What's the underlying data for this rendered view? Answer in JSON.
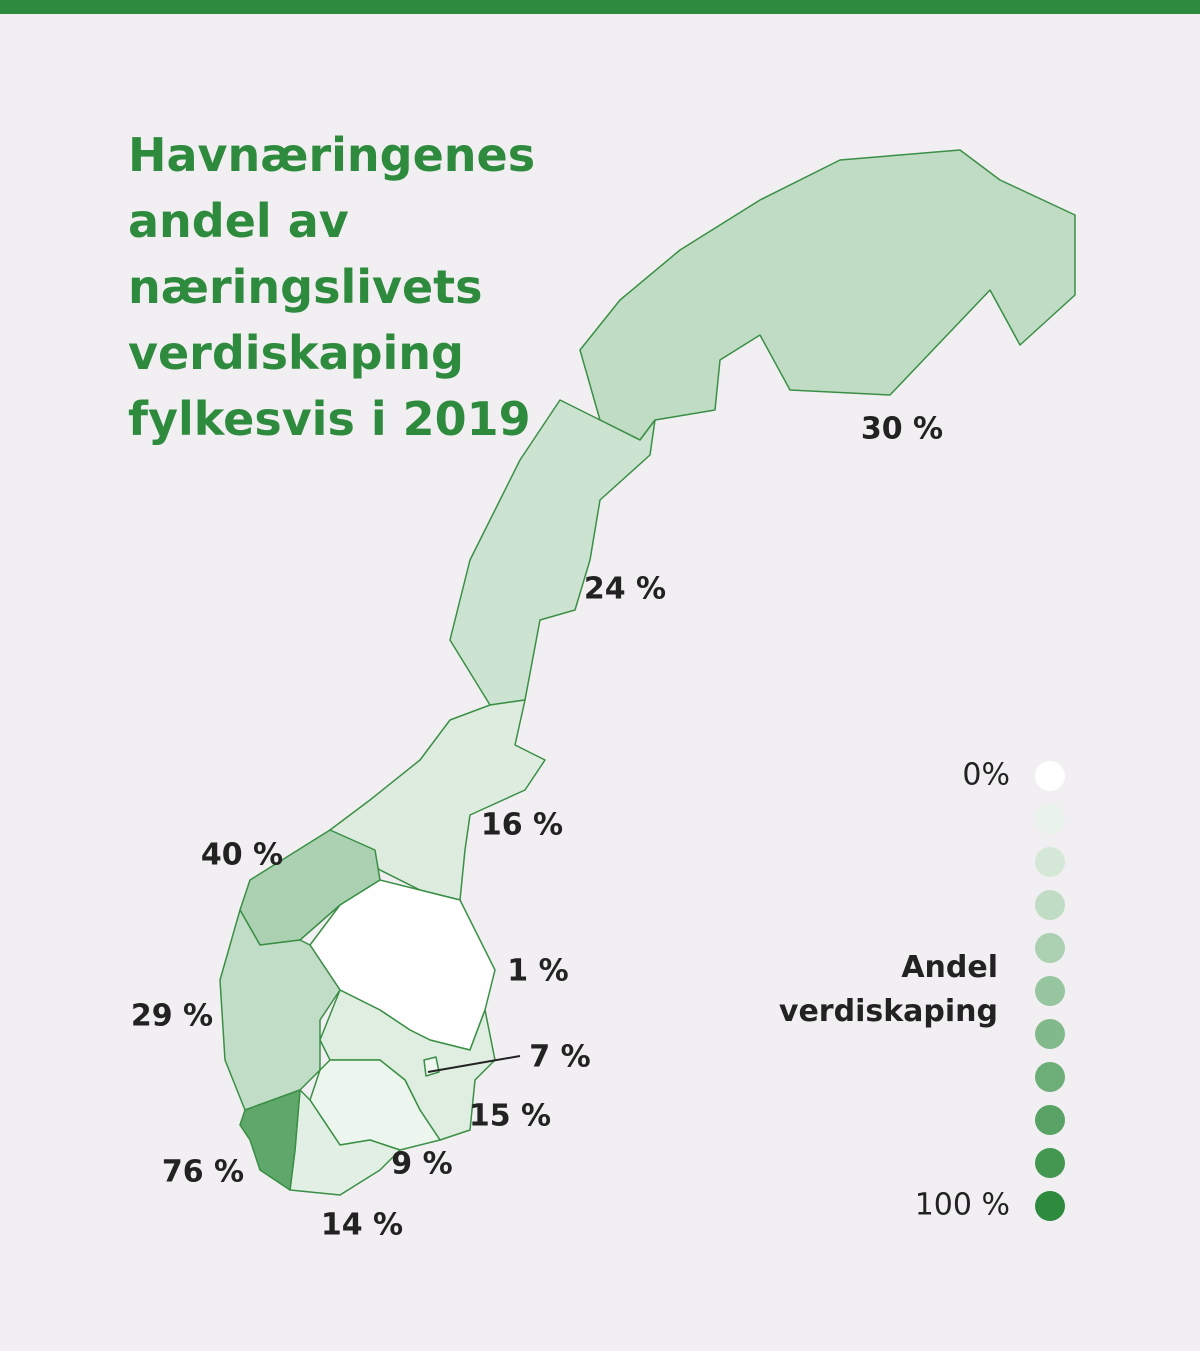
{
  "title": "Havnæringenes andel av næringslivets verdiskaping fylkesvis i 2019",
  "regions": [
    {
      "value": 30,
      "label": "30 %"
    },
    {
      "value": 24,
      "label": "24 %"
    },
    {
      "value": 16,
      "label": "16 %"
    },
    {
      "value": 40,
      "label": "40 %"
    },
    {
      "value": 1,
      "label": "1 %"
    },
    {
      "value": 29,
      "label": "29 %"
    },
    {
      "value": 15,
      "label": "15 %"
    },
    {
      "value": 7,
      "label": "7 %"
    },
    {
      "value": 9,
      "label": "9 %"
    },
    {
      "value": 14,
      "label": "14 %"
    },
    {
      "value": 76,
      "label": "76 %"
    }
  ],
  "legend": {
    "title": "Andel verdiskaping",
    "min": {
      "value": 0,
      "label": "0%"
    },
    "max": {
      "value": 100,
      "label": "100 %"
    },
    "min_color": "#ffffff",
    "max_color": "#2e8b3e"
  }
}
